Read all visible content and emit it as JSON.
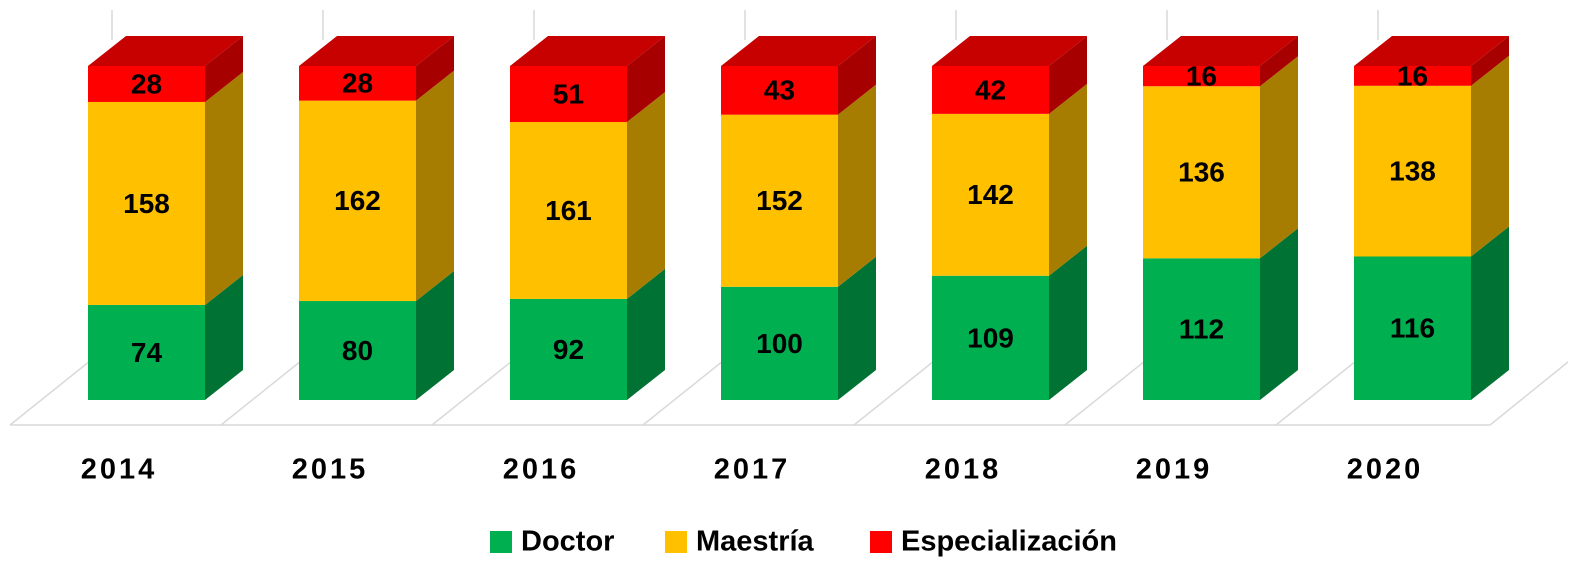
{
  "chart_data": {
    "type": "bar",
    "stacking": "percent",
    "categories": [
      "2014",
      "2015",
      "2016",
      "2017",
      "2018",
      "2019",
      "2020"
    ],
    "series": [
      {
        "name": "Doctor",
        "color": "#00b050",
        "values": [
          74,
          80,
          92,
          100,
          109,
          112,
          116
        ]
      },
      {
        "name": "Maestría",
        "color": "#ffc000",
        "values": [
          158,
          162,
          161,
          152,
          142,
          136,
          138
        ]
      },
      {
        "name": "Especialización",
        "color": "#ff0000",
        "values": [
          28,
          28,
          51,
          43,
          42,
          16,
          16
        ]
      }
    ],
    "legend": "bottom"
  }
}
